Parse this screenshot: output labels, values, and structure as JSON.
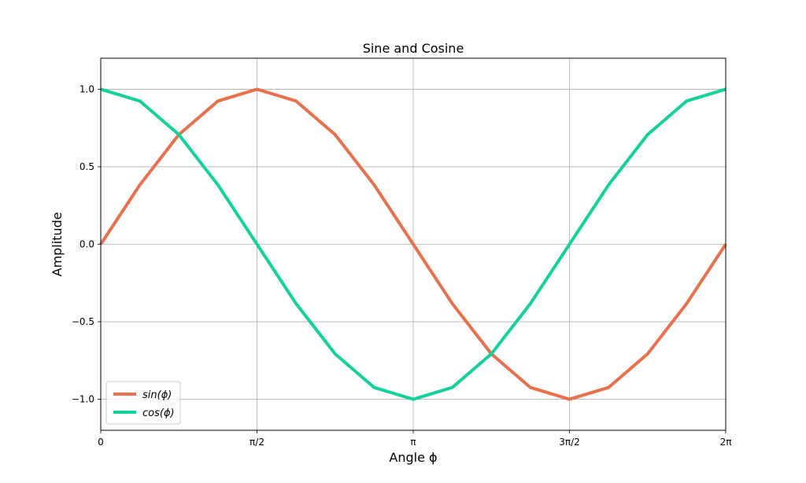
{
  "chart_data": {
    "type": "line",
    "title": "Sine and Cosine",
    "xlabel": "Angle ϕ",
    "ylabel": "Amplitude",
    "xlim": [
      0,
      6.283185307
    ],
    "ylim": [
      -1.2,
      1.2
    ],
    "grid": true,
    "legend_position": "lower-left",
    "x_ticks": [
      {
        "value": 0,
        "label": "0"
      },
      {
        "value": 1.570796327,
        "label": "π/2"
      },
      {
        "value": 3.141592654,
        "label": "π"
      },
      {
        "value": 4.71238898,
        "label": "3π/2"
      },
      {
        "value": 6.283185307,
        "label": "2π"
      }
    ],
    "y_ticks": [
      {
        "value": 1.0,
        "label": "1.0"
      },
      {
        "value": 0.5,
        "label": "0.5"
      },
      {
        "value": 0.0,
        "label": "0.0"
      },
      {
        "value": -0.5,
        "label": "−0.5"
      },
      {
        "value": -1.0,
        "label": "−1.0"
      }
    ],
    "x": [
      0,
      0.3927,
      0.7854,
      1.1781,
      1.5708,
      1.9635,
      2.3562,
      2.7489,
      3.1416,
      3.5343,
      3.927,
      4.3197,
      4.7124,
      5.1051,
      5.4978,
      5.8905,
      6.2832
    ],
    "series": [
      {
        "name": "sin(ϕ)",
        "color": "#e8704c",
        "values": [
          0,
          0.3827,
          0.7071,
          0.9239,
          1.0,
          0.9239,
          0.7071,
          0.3827,
          0,
          -0.3827,
          -0.7071,
          -0.9239,
          -1.0,
          -0.9239,
          -0.7071,
          -0.3827,
          0
        ]
      },
      {
        "name": "cos(ϕ)",
        "color": "#13d19b",
        "values": [
          1.0,
          0.9239,
          0.7071,
          0.3827,
          0,
          -0.3827,
          -0.7071,
          -0.9239,
          -1.0,
          -0.9239,
          -0.7071,
          -0.3827,
          0,
          0.3827,
          0.7071,
          0.9239,
          1.0
        ]
      }
    ]
  }
}
